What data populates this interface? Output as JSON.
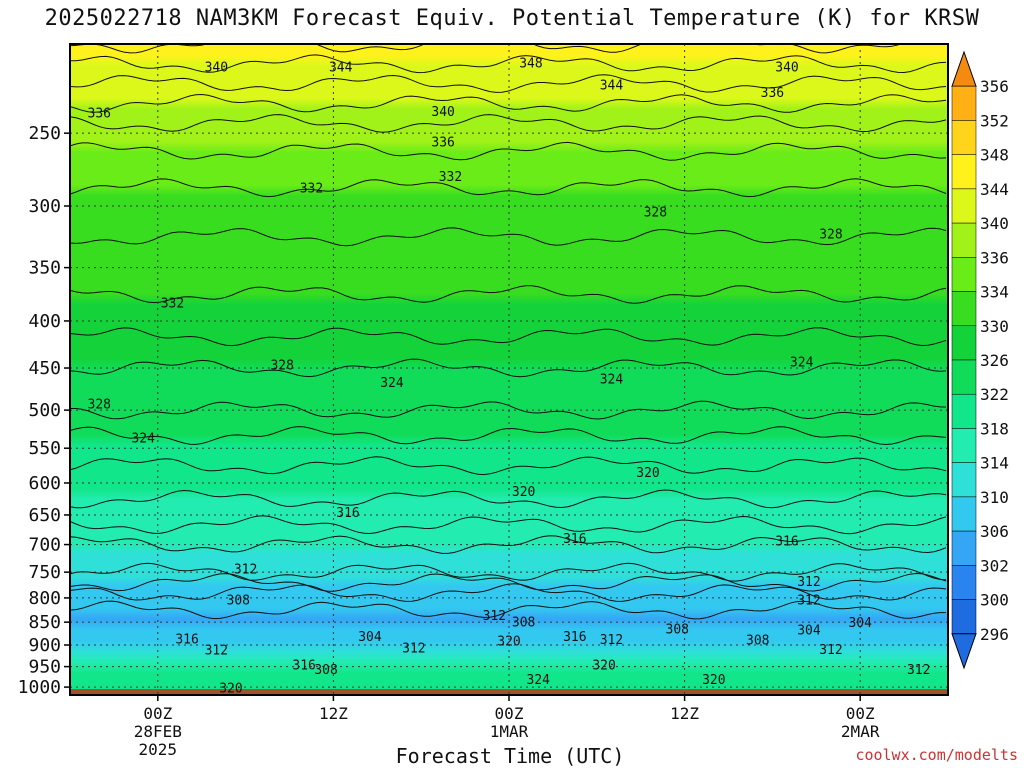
{
  "chart_data": {
    "type": "heatmap",
    "title": "2025022718 NAM3KM Forecast Equiv. Potential Temperature (K) for KRSW",
    "xlabel": "Forecast Time (UTC)",
    "credit": "coolwx.com/modelts",
    "y_axis": {
      "label": "",
      "scale": "log-pressure",
      "inverted": true,
      "range_hpa": [
        1020,
        200
      ],
      "ticks": [
        250,
        300,
        350,
        400,
        450,
        500,
        550,
        600,
        650,
        700,
        750,
        800,
        850,
        900,
        950,
        1000
      ]
    },
    "x_axis": {
      "range_hours": [
        -6,
        54
      ],
      "ticks": [
        {
          "hour": 0,
          "lines": [
            "00Z",
            "28FEB",
            "2025"
          ]
        },
        {
          "hour": 12,
          "lines": [
            "12Z"
          ]
        },
        {
          "hour": 24,
          "lines": [
            "00Z",
            "1MAR"
          ]
        },
        {
          "hour": 36,
          "lines": [
            "12Z"
          ]
        },
        {
          "hour": 48,
          "lines": [
            "00Z",
            "2MAR"
          ]
        }
      ]
    },
    "colorbar": {
      "levels": [
        296,
        300,
        302,
        306,
        310,
        314,
        318,
        322,
        326,
        330,
        334,
        336,
        340,
        344,
        348,
        352,
        356
      ],
      "labels": [
        "356",
        "352",
        "348",
        "344",
        "340",
        "336",
        "334",
        "330",
        "326",
        "322",
        "318",
        "314",
        "310",
        "306",
        "302",
        "300",
        "296"
      ],
      "colors": [
        "#1f6be0",
        "#2a84f0",
        "#35a6f5",
        "#33c8f0",
        "#2fe0d8",
        "#22ecb0",
        "#12e68a",
        "#10dc5a",
        "#14d33a",
        "#38dd20",
        "#6aec18",
        "#a0f218",
        "#dcf81a",
        "#fff21c",
        "#ffd41a",
        "#ffb014",
        "#f58a10"
      ]
    },
    "grid": true,
    "surface_color": "#a0522d",
    "profile_levels_hpa": [
      1000,
      950,
      900,
      850,
      800,
      750,
      700,
      650,
      600,
      550,
      500,
      450,
      400,
      350,
      300,
      250,
      200
    ],
    "profile_theta_e_K": [
      321,
      318,
      310,
      305,
      307,
      312,
      314,
      317,
      319,
      321,
      324,
      326,
      329,
      331,
      333,
      337,
      346
    ],
    "contour_labels": [
      {
        "text": "340",
        "hour": 4,
        "hpa": 212
      },
      {
        "text": "344",
        "hour": 12.5,
        "hpa": 212
      },
      {
        "text": "348",
        "hour": 25.5,
        "hpa": 210
      },
      {
        "text": "344",
        "hour": 31,
        "hpa": 222
      },
      {
        "text": "340",
        "hour": 43,
        "hpa": 212
      },
      {
        "text": "336",
        "hour": -4,
        "hpa": 238
      },
      {
        "text": "340",
        "hour": 19.5,
        "hpa": 237
      },
      {
        "text": "336",
        "hour": 42,
        "hpa": 226
      },
      {
        "text": "336",
        "hour": 19.5,
        "hpa": 256
      },
      {
        "text": "332",
        "hour": 10.5,
        "hpa": 287
      },
      {
        "text": "332",
        "hour": 20,
        "hpa": 279
      },
      {
        "text": "328",
        "hour": 34,
        "hpa": 305
      },
      {
        "text": "328",
        "hour": 46,
        "hpa": 322
      },
      {
        "text": "332",
        "hour": 1,
        "hpa": 383
      },
      {
        "text": "328",
        "hour": 8.5,
        "hpa": 447
      },
      {
        "text": "324",
        "hour": 16,
        "hpa": 467
      },
      {
        "text": "324",
        "hour": 31,
        "hpa": 463
      },
      {
        "text": "324",
        "hour": 44,
        "hpa": 444
      },
      {
        "text": "328",
        "hour": -4,
        "hpa": 493
      },
      {
        "text": "324",
        "hour": -1,
        "hpa": 537
      },
      {
        "text": "320",
        "hour": 33.5,
        "hpa": 585
      },
      {
        "text": "320",
        "hour": 25,
        "hpa": 614
      },
      {
        "text": "316",
        "hour": 13,
        "hpa": 647
      },
      {
        "text": "316",
        "hour": 28.5,
        "hpa": 690
      },
      {
        "text": "316",
        "hour": 43,
        "hpa": 695
      },
      {
        "text": "312",
        "hour": 6,
        "hpa": 745
      },
      {
        "text": "312",
        "hour": 44.5,
        "hpa": 769
      },
      {
        "text": "312",
        "hour": 44.5,
        "hpa": 805
      },
      {
        "text": "308",
        "hour": 5.5,
        "hpa": 805
      },
      {
        "text": "312",
        "hour": 23,
        "hpa": 837
      },
      {
        "text": "308",
        "hour": 25,
        "hpa": 851
      },
      {
        "text": "304",
        "hour": 48,
        "hpa": 852
      },
      {
        "text": "304",
        "hour": 14.5,
        "hpa": 882
      },
      {
        "text": "316",
        "hour": 28.5,
        "hpa": 882
      },
      {
        "text": "312",
        "hour": 31,
        "hpa": 889
      },
      {
        "text": "308",
        "hour": 35.5,
        "hpa": 866
      },
      {
        "text": "308",
        "hour": 41,
        "hpa": 890
      },
      {
        "text": "304",
        "hour": 44.5,
        "hpa": 868
      },
      {
        "text": "316",
        "hour": 2,
        "hpa": 888
      },
      {
        "text": "320",
        "hour": 24,
        "hpa": 892
      },
      {
        "text": "312",
        "hour": 4,
        "hpa": 913
      },
      {
        "text": "312",
        "hour": 17.5,
        "hpa": 908
      },
      {
        "text": "316",
        "hour": 10,
        "hpa": 948
      },
      {
        "text": "308",
        "hour": 11.5,
        "hpa": 958
      },
      {
        "text": "320",
        "hour": 30.5,
        "hpa": 948
      },
      {
        "text": "312",
        "hour": 46,
        "hpa": 911
      },
      {
        "text": "312",
        "hour": 52,
        "hpa": 958
      },
      {
        "text": "324",
        "hour": 26,
        "hpa": 982
      },
      {
        "text": "320",
        "hour": 38,
        "hpa": 983
      },
      {
        "text": "320",
        "hour": 5,
        "hpa": 1003
      }
    ]
  }
}
